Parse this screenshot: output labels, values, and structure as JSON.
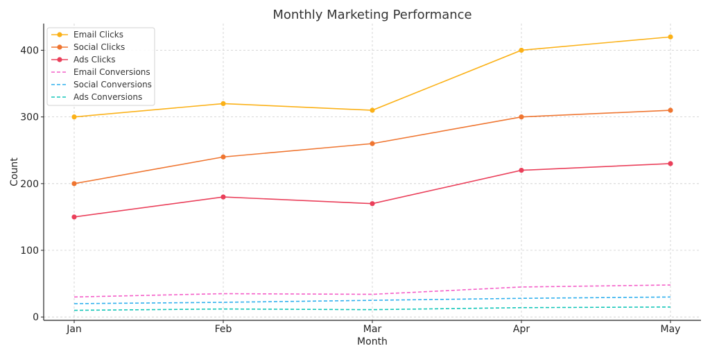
{
  "chart_data": {
    "type": "line",
    "title": "Monthly Marketing Performance",
    "xlabel": "Month",
    "ylabel": "Count",
    "categories": [
      "Jan",
      "Feb",
      "Mar",
      "Apr",
      "May"
    ],
    "ylim": [
      -5,
      440
    ],
    "yticks": [
      0,
      100,
      200,
      300,
      400
    ],
    "grid": true,
    "legend_position": "top-left",
    "series": [
      {
        "name": "Email Clicks",
        "values": [
          300,
          320,
          310,
          400,
          420
        ],
        "color": "#fbb117",
        "style": "solid",
        "marker": "circle"
      },
      {
        "name": "Social Clicks",
        "values": [
          200,
          240,
          260,
          300,
          310
        ],
        "color": "#ef7530",
        "style": "solid",
        "marker": "circle"
      },
      {
        "name": "Ads Clicks",
        "values": [
          150,
          180,
          170,
          220,
          230
        ],
        "color": "#ea3f5a",
        "style": "solid",
        "marker": "circle"
      },
      {
        "name": "Email Conversions",
        "values": [
          30,
          35,
          34,
          45,
          48
        ],
        "color": "#f45ec8",
        "style": "dashed",
        "marker": "none"
      },
      {
        "name": "Social Conversions",
        "values": [
          20,
          22,
          25,
          28,
          30
        ],
        "color": "#2fb0ee",
        "style": "dashed",
        "marker": "none"
      },
      {
        "name": "Ads Conversions",
        "values": [
          10,
          12,
          11,
          14,
          15
        ],
        "color": "#12c6b8",
        "style": "dashed",
        "marker": "none"
      }
    ]
  }
}
